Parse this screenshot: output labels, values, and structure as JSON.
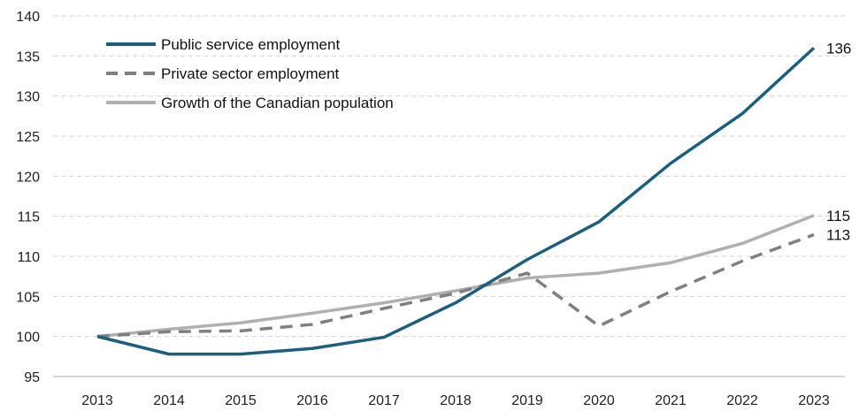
{
  "chart_data": {
    "type": "line",
    "title": "",
    "xlabel": "",
    "ylabel": "",
    "ylim": [
      95,
      140
    ],
    "y_ticks": [
      "95",
      "100",
      "105",
      "110",
      "115",
      "120",
      "125",
      "130",
      "135",
      "140"
    ],
    "categories": [
      "2013",
      "2014",
      "2015",
      "2016",
      "2017",
      "2018",
      "2019",
      "2020",
      "2021",
      "2022",
      "2023"
    ],
    "grid": "horizontal dashed",
    "legend_position": "top-left",
    "series": [
      {
        "name": "Public service employment",
        "values": [
          100,
          97.8,
          97.8,
          98.5,
          99.9,
          104.2,
          109.6,
          114.3,
          121.6,
          127.8,
          136
        ],
        "color": "#1b5f80",
        "style": "solid",
        "end_label": "136"
      },
      {
        "name": "Private sector employment",
        "values": [
          100,
          100.6,
          100.7,
          101.5,
          103.5,
          105.4,
          107.9,
          101.3,
          105.6,
          109.4,
          112.7
        ],
        "color": "#7f7f7f",
        "style": "dashed",
        "end_label": "113"
      },
      {
        "name": "Growth of the Canadian population",
        "values": [
          100,
          100.9,
          101.7,
          102.9,
          104.2,
          105.7,
          107.3,
          107.9,
          109.2,
          111.6,
          115.1
        ],
        "color": "#b0b0b0",
        "style": "solid",
        "end_label": "115"
      }
    ]
  }
}
